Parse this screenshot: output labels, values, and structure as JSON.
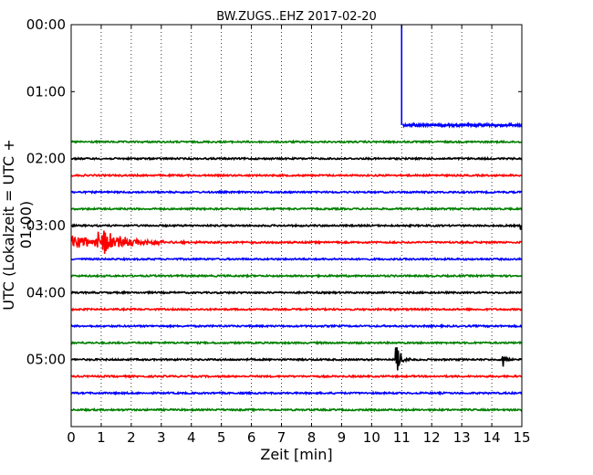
{
  "chart_data": {
    "type": "line",
    "title": "BW.ZUGS..EHZ 2017-02-20",
    "xlabel": "Zeit  [min]",
    "ylabel": "UTC (Lokalzeit = UTC + 01:00)",
    "xlim": [
      0,
      15
    ],
    "x_ticks": [
      "0",
      "1",
      "2",
      "3",
      "4",
      "5",
      "6",
      "7",
      "8",
      "9",
      "10",
      "11",
      "12",
      "13",
      "14",
      "15"
    ],
    "y_ticks": [
      "00:00",
      "01:00",
      "02:00",
      "03:00",
      "04:00",
      "05:00"
    ],
    "y_tick_hours": [
      0,
      1,
      2,
      3,
      4,
      5
    ],
    "ylim_hours": [
      0,
      6
    ],
    "grid": "vertical dotted lines at each minute",
    "trace_colors": [
      "#0000ff",
      "#008000",
      "#000000",
      "#ff0000"
    ],
    "traces": [
      {
        "start_hours": 1.5,
        "color": "#0000ff",
        "start_minute": 11.05,
        "spike": {
          "minute": 11.0,
          "amplitude_hours": -2.0
        }
      },
      {
        "start_hours": 1.75,
        "color": "#008000"
      },
      {
        "start_hours": 2.0,
        "color": "#000000"
      },
      {
        "start_hours": 2.25,
        "color": "#ff0000"
      },
      {
        "start_hours": 2.5,
        "color": "#0000ff"
      },
      {
        "start_hours": 2.75,
        "color": "#008000"
      },
      {
        "start_hours": 3.0,
        "color": "#000000",
        "events": [
          {
            "minute": 15.0,
            "amplitude_hours": 0.08,
            "decay_minutes": 0.1
          }
        ]
      },
      {
        "start_hours": 3.25,
        "color": "#ff0000",
        "events": [
          {
            "minute": 0.0,
            "amplitude_hours": 0.1,
            "decay_minutes": 1.5
          },
          {
            "minute": 0.9,
            "amplitude_hours": 0.22,
            "decay_minutes": 0.7
          }
        ]
      },
      {
        "start_hours": 3.5,
        "color": "#0000ff"
      },
      {
        "start_hours": 3.75,
        "color": "#008000"
      },
      {
        "start_hours": 4.0,
        "color": "#000000"
      },
      {
        "start_hours": 4.25,
        "color": "#ff0000"
      },
      {
        "start_hours": 4.5,
        "color": "#0000ff"
      },
      {
        "start_hours": 4.75,
        "color": "#008000"
      },
      {
        "start_hours": 5.0,
        "color": "#000000",
        "events": [
          {
            "minute": 10.85,
            "amplitude_hours": 0.2,
            "decay_minutes": 0.15
          },
          {
            "minute": 14.4,
            "amplitude_hours": 0.12,
            "decay_minutes": 0.1
          }
        ]
      },
      {
        "start_hours": 5.25,
        "color": "#ff0000"
      },
      {
        "start_hours": 5.5,
        "color": "#0000ff"
      },
      {
        "start_hours": 5.75,
        "color": "#008000"
      }
    ]
  }
}
